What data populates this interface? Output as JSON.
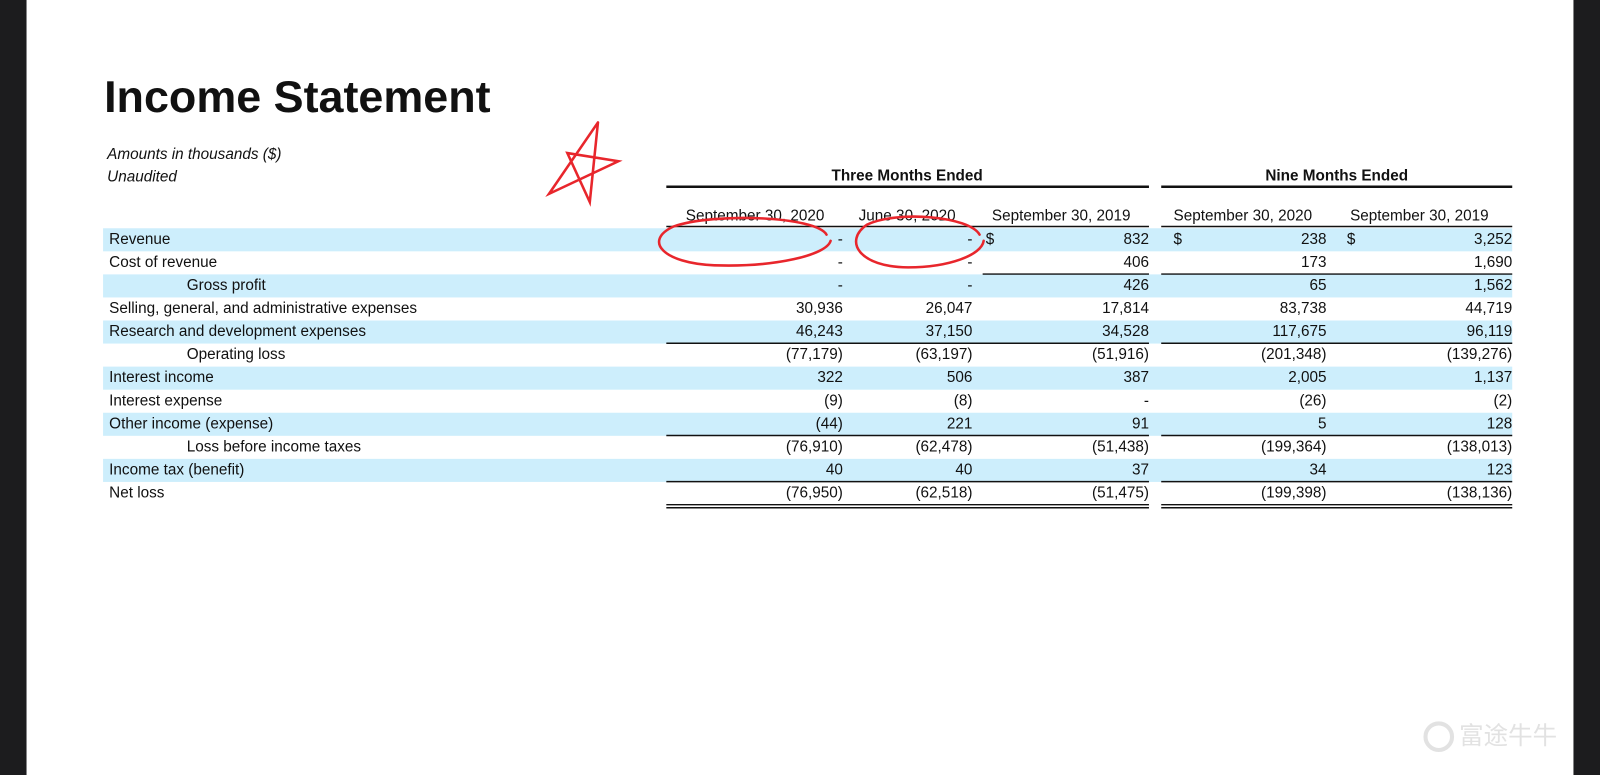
{
  "header": {
    "title": "Income Statement",
    "subtitle_lines": [
      "Amounts in thousands ($)",
      "Unaudited"
    ]
  },
  "table": {
    "groups": [
      "Three Months Ended",
      "Nine Months Ended"
    ],
    "columns": [
      "September 30, 2020",
      "June 30, 2020",
      "September 30, 2019",
      "September 30, 2020",
      "September 30, 2019"
    ],
    "rows": [
      {
        "label": "Revenue",
        "cells": [
          "-",
          "-",
          {
            "symbol": "$",
            "amount": "832"
          },
          {
            "symbol": "$",
            "amount": "238"
          },
          {
            "symbol": "$",
            "amount": "3,252"
          }
        ]
      },
      {
        "label": "Cost of revenue",
        "cells": [
          "-",
          "-",
          "406",
          "173",
          "1,690"
        ]
      },
      {
        "label": "Gross profit",
        "cells": [
          "-",
          "-",
          "426",
          "65",
          "1,562"
        ]
      },
      {
        "label": "Selling, general, and administrative expenses",
        "cells": [
          "30,936",
          "26,047",
          "17,814",
          "83,738",
          "44,719"
        ]
      },
      {
        "label": "Research and development expenses",
        "cells": [
          "46,243",
          "37,150",
          "34,528",
          "117,675",
          "96,119"
        ]
      },
      {
        "label": "Operating loss",
        "cells": [
          "(77,179)",
          "(63,197)",
          "(51,916)",
          "(201,348)",
          "(139,276)"
        ]
      },
      {
        "label": "Interest income",
        "cells": [
          "322",
          "506",
          "387",
          "2,005",
          "1,137"
        ]
      },
      {
        "label": "Interest expense",
        "cells": [
          "(9)",
          "(8)",
          "-",
          "(26)",
          "(2)"
        ]
      },
      {
        "label": "Other income (expense)",
        "cells": [
          "(44)",
          "221",
          "91",
          "5",
          "128"
        ]
      },
      {
        "label": "Loss before income taxes",
        "cells": [
          "(76,910)",
          "(62,478)",
          "(51,438)",
          "(199,364)",
          "(138,013)"
        ]
      },
      {
        "label": "Income tax (benefit)",
        "cells": [
          "40",
          "40",
          "37",
          "34",
          "123"
        ]
      },
      {
        "label": "Net loss",
        "cells": [
          "(76,950)",
          "(62,518)",
          "(51,475)",
          "(199,398)",
          "(138,136)"
        ]
      }
    ]
  },
  "watermark": "富途牛牛"
}
